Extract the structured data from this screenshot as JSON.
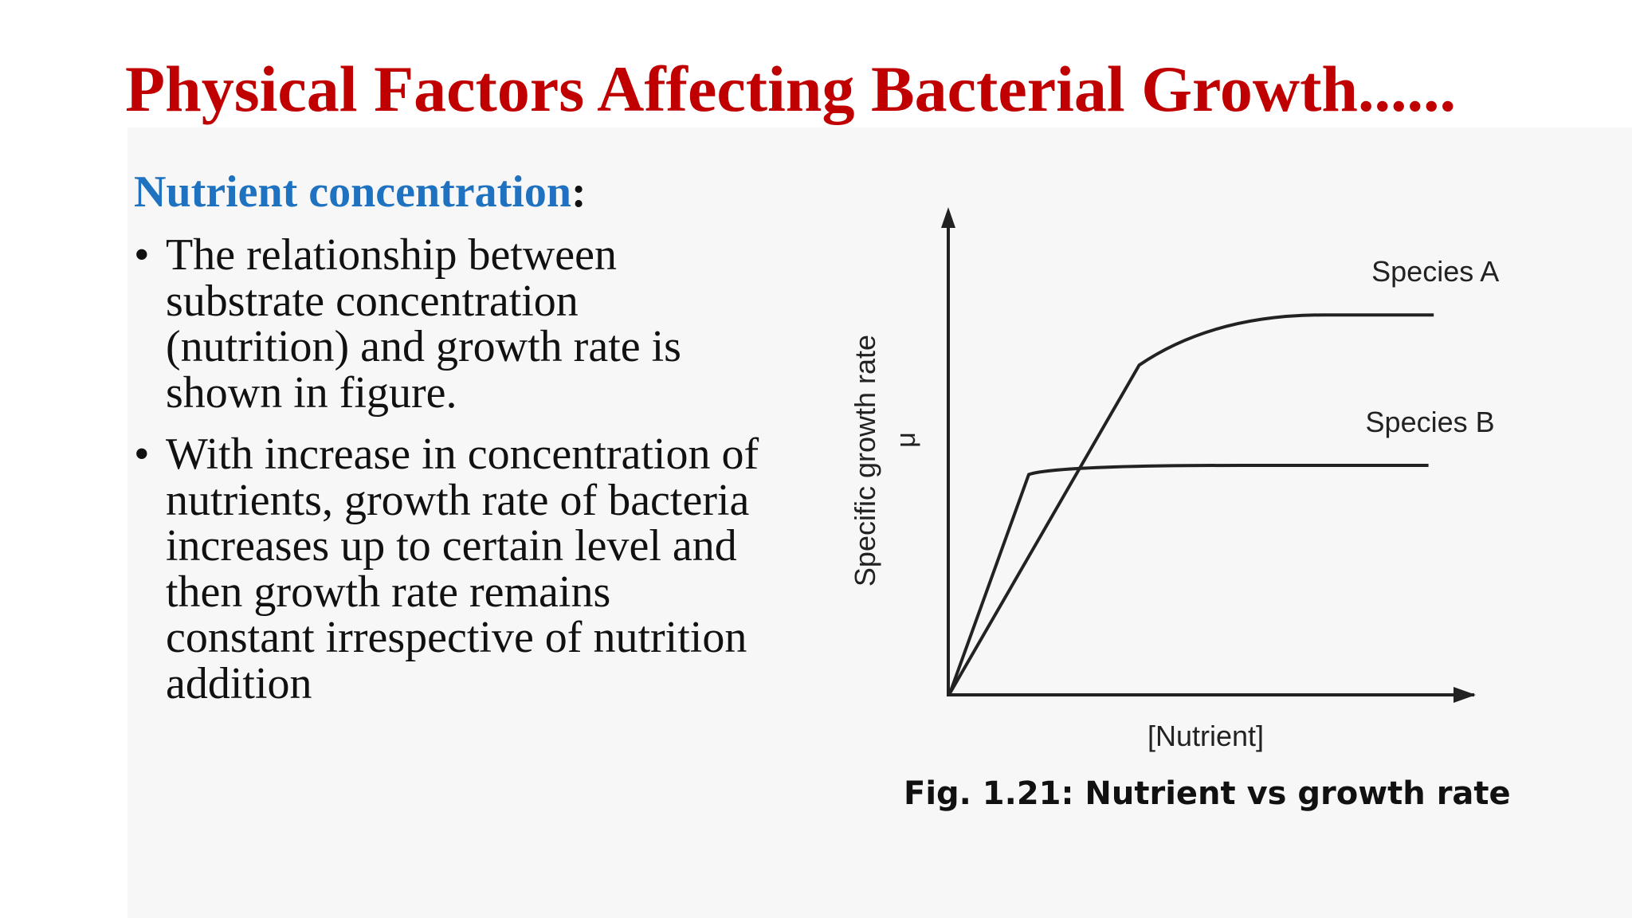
{
  "slide": {
    "title": "Physical Factors Affecting Bacterial Growth......",
    "section_heading": "Nutrient concentration",
    "section_heading_suffix": ":",
    "bullet_glyph": "•",
    "bullets": [
      [
        "The relationship between",
        "substrate concentration",
        "(nutrition) and growth rate is",
        "shown in figure."
      ],
      [
        "With increase in concentration of",
        "nutrients, growth rate of bacteria",
        "increases up to certain level and",
        "then growth rate remains",
        "constant irrespective of nutrition",
        "addition"
      ]
    ]
  },
  "figure": {
    "caption": "Fig. 1.21: Nutrient vs growth rate"
  },
  "chart_data": {
    "type": "line",
    "xlabel": "[Nutrient]",
    "ylabel": "Specific growth rate",
    "ysymbol": "μ",
    "ticks": "none",
    "grid": false,
    "legend": "labels placed above each curve at right end",
    "xlim": [
      0,
      100
    ],
    "ylim": [
      0,
      100
    ],
    "line_color": "#222222",
    "series": [
      {
        "name": "Species A",
        "x": [
          0,
          36,
          50,
          92
        ],
        "y": [
          0,
          72,
          83,
          83
        ]
      },
      {
        "name": "Species B",
        "x": [
          0,
          15,
          20,
          91
        ],
        "y": [
          0,
          48,
          50,
          50
        ]
      }
    ]
  }
}
